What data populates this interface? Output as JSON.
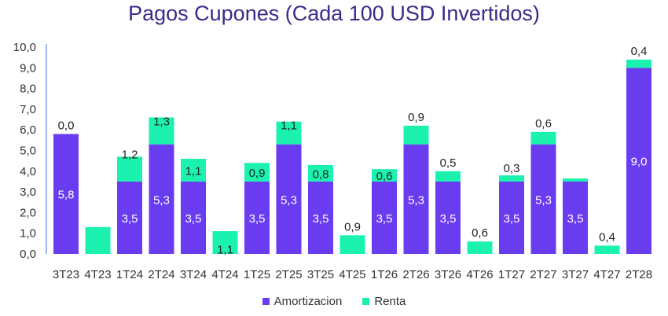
{
  "chart_data": {
    "type": "bar",
    "stacked": true,
    "title": "Pagos Cupones (Cada 100 USD Invertidos)",
    "xlabel": "",
    "ylabel": "",
    "ylim": [
      0,
      10
    ],
    "yticks": [
      "0,0",
      "1,0",
      "2,0",
      "3,0",
      "4,0",
      "5,0",
      "6,0",
      "7,0",
      "8,0",
      "9,0",
      "10,0"
    ],
    "categories": [
      "3T23",
      "4T23",
      "1T24",
      "2T24",
      "3T24",
      "4T24",
      "1T25",
      "2T25",
      "3T25",
      "4T25",
      "1T26",
      "2T26",
      "3T26",
      "4T26",
      "1T27",
      "2T27",
      "3T27",
      "4T27",
      "2T28"
    ],
    "series": [
      {
        "name": "Amortizacion",
        "color": "#6a3cf0",
        "values": [
          5.8,
          0,
          3.5,
          5.3,
          3.5,
          0,
          3.5,
          5.3,
          3.5,
          0,
          3.5,
          5.3,
          3.5,
          0,
          3.5,
          5.3,
          3.5,
          0,
          9.0
        ],
        "labels": [
          "5,8",
          "",
          "3,5",
          "5,3",
          "3,5",
          "",
          "3,5",
          "5,3",
          "3,5",
          "",
          "3,5",
          "5,3",
          "3,5",
          "",
          "3,5",
          "5,3",
          "3,5",
          "",
          "9,0"
        ]
      },
      {
        "name": "Renta",
        "color": "#1cf2b0",
        "values": [
          0.0,
          1.3,
          1.2,
          1.3,
          1.1,
          1.1,
          0.9,
          1.1,
          0.8,
          0.9,
          0.6,
          0.9,
          0.5,
          0.6,
          0.3,
          0.6,
          0.15,
          0.4,
          0.4
        ],
        "labels": [
          "0,0",
          "",
          "1,2",
          "1,3",
          "1,1",
          "1,1",
          "0,9",
          "1,1",
          "0,8",
          "0,9",
          "0,6",
          "0,9",
          "0,5",
          "0,6",
          "0,3",
          "0,6",
          "",
          "0,4",
          "0,4"
        ]
      }
    ],
    "legend_position": "bottom",
    "grid": false
  }
}
